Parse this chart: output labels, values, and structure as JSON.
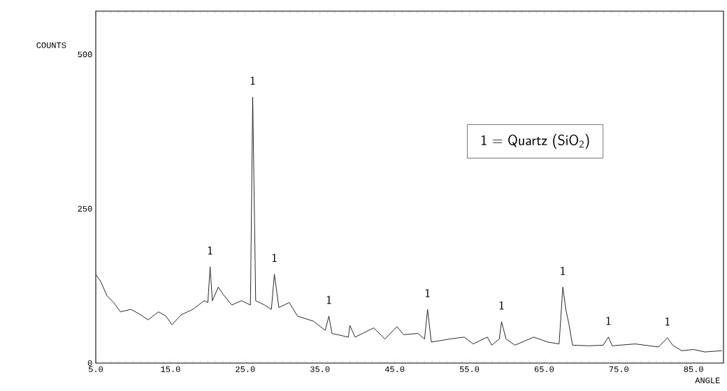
{
  "chart_data": {
    "type": "line",
    "xlabel": "ANGLE",
    "ylabel": "COUNTS",
    "color": "#1a1a1a",
    "x": [
      5.0,
      5.7,
      6.5,
      7.4,
      8.3,
      9.7,
      10.9,
      12.0,
      13.4,
      14.4,
      15.2,
      16.4,
      18.0,
      19.5,
      20.0,
      20.3,
      20.6,
      21.4,
      22.0,
      23.2,
      24.5,
      25.7,
      26.0,
      26.4,
      27.6,
      28.5,
      28.9,
      29.5,
      30.9,
      32.0,
      34.1,
      35.7,
      36.2,
      36.6,
      38.8,
      39.0,
      39.7,
      42.2,
      43.7,
      45.3,
      46.2,
      48.1,
      49.0,
      49.4,
      49.9,
      52.4,
      54.3,
      55.5,
      57.4,
      58.0,
      59.0,
      59.3,
      59.9,
      61.1,
      63.6,
      65.5,
      67.0,
      67.5,
      67.9,
      68.3,
      68.8,
      71.0,
      72.9,
      73.6,
      74.1,
      77.2,
      80.3,
      81.5,
      82.2,
      83.4,
      85.0,
      86.5,
      88.8
    ],
    "values": [
      144,
      131,
      109,
      98,
      83,
      87,
      79,
      70,
      83,
      76,
      62,
      78,
      87,
      101,
      98,
      156,
      101,
      123,
      112,
      94,
      101,
      94,
      431,
      101,
      94,
      87,
      144,
      90,
      98,
      76,
      68,
      53,
      76,
      48,
      42,
      61,
      42,
      57,
      39,
      59,
      46,
      48,
      39,
      87,
      34,
      39,
      42,
      31,
      42,
      29,
      39,
      67,
      39,
      29,
      42,
      34,
      31,
      123,
      87,
      64,
      29,
      28,
      29,
      42,
      28,
      31,
      26,
      41,
      29,
      20,
      22,
      18,
      20
    ],
    "xlim": [
      5,
      89
    ],
    "ylim": [
      0,
      570
    ],
    "xticks": [
      {
        "value": 5,
        "label": "5.0"
      },
      {
        "value": 15,
        "label": "15.0"
      },
      {
        "value": 25,
        "label": "25.0"
      },
      {
        "value": 35,
        "label": "35.0"
      },
      {
        "value": 45,
        "label": "45.0"
      },
      {
        "value": 55,
        "label": "55.0"
      },
      {
        "value": 65,
        "label": "65.0"
      },
      {
        "value": 75,
        "label": "75.0"
      },
      {
        "value": 85,
        "label": "85.0"
      }
    ],
    "yticks": [
      0,
      250,
      500
    ],
    "annotations": [
      {
        "text": "1",
        "x": 20.3,
        "y": 156
      },
      {
        "text": "1",
        "x": 26.0,
        "y": 431
      },
      {
        "text": "1",
        "x": 28.9,
        "y": 144
      },
      {
        "text": "1",
        "x": 36.2,
        "y": 76
      },
      {
        "text": "1",
        "x": 49.4,
        "y": 87
      },
      {
        "text": "1",
        "x": 59.3,
        "y": 67
      },
      {
        "text": "1",
        "x": 67.5,
        "y": 123
      },
      {
        "text": "1",
        "x": 73.6,
        "y": 42
      },
      {
        "text": "1",
        "x": 81.5,
        "y": 41
      },
      "1 = Quartz (SiO$_{2}$)"
    ]
  }
}
